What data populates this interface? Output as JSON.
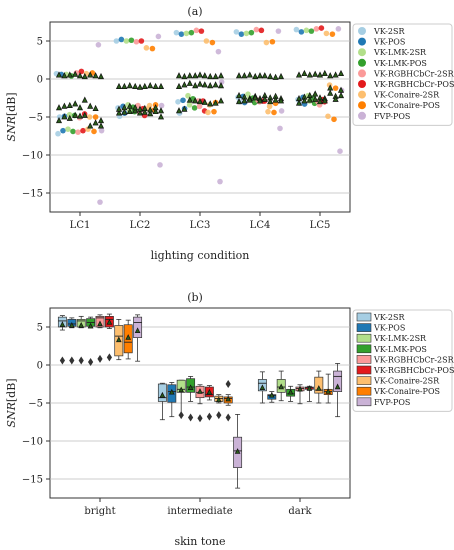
{
  "chart_data": [
    {
      "type": "scatter",
      "panel_title": "(a)",
      "xlabel": "lighting condition",
      "ylabel_main": "SNR",
      "ylabel_unit": "[dB]",
      "ylim": [
        -17.5,
        7.5
      ],
      "yticks": [
        -15,
        -10,
        -5,
        0,
        5
      ],
      "grid": "horizontal",
      "legend_position": "right",
      "categories": [
        "LC1",
        "LC2",
        "LC3",
        "LC4",
        "LC5"
      ],
      "series": [
        {
          "name": "VK-2SR",
          "color": "#a6cee3",
          "values": [
            [
              0.7,
              -7.2,
              -5.0
            ],
            [
              5.0,
              -3.8,
              -4.9
            ],
            [
              6.1,
              -3.0,
              -4.5
            ],
            [
              6.2,
              -2.4,
              -3.0
            ],
            [
              6.5,
              -2.7,
              -3.2
            ]
          ]
        },
        {
          "name": "VK-POS",
          "color": "#1f78b4",
          "values": [
            [
              0.6,
              -6.8,
              -4.9
            ],
            [
              5.2,
              -3.6,
              -4.5
            ],
            [
              5.9,
              -2.8,
              -3.9
            ],
            [
              5.9,
              -2.3,
              -3.1
            ],
            [
              6.2,
              -2.4,
              -3.3
            ]
          ]
        },
        {
          "name": "VK-LMK-2SR",
          "color": "#b2df8a",
          "values": [
            [
              0.6,
              -6.6,
              -4.7
            ],
            [
              5.0,
              -3.4,
              -4.2
            ],
            [
              6.0,
              -2.2,
              -3.4
            ],
            [
              6.0,
              -2.0,
              -2.6
            ],
            [
              6.4,
              -2.2,
              -2.9
            ]
          ]
        },
        {
          "name": "VK-LMK-POS",
          "color": "#33a02c",
          "values": [
            [
              0.4,
              -6.9,
              -4.8
            ],
            [
              5.1,
              -3.7,
              -4.3
            ],
            [
              6.1,
              -2.6,
              -3.8
            ],
            [
              6.1,
              -2.5,
              -3.1
            ],
            [
              6.3,
              -2.5,
              -3.2
            ]
          ]
        },
        {
          "name": "VK-RGBHCbCr-2SR",
          "color": "#fb9a99",
          "values": [
            [
              0.8,
              -7.0,
              -5.1
            ],
            [
              4.9,
              -3.5,
              -4.4
            ],
            [
              6.4,
              -2.9,
              -3.6
            ],
            [
              6.5,
              -2.8,
              -3.0
            ],
            [
              6.6,
              -3.0,
              -3.4
            ]
          ]
        },
        {
          "name": "VK-RGBHCbCr-POS",
          "color": "#e31a1c",
          "values": [
            [
              1.0,
              -6.8,
              -4.6
            ],
            [
              5.0,
              -3.9,
              -4.8
            ],
            [
              6.3,
              -2.9,
              -4.2
            ],
            [
              6.4,
              -2.9,
              -2.9
            ],
            [
              6.7,
              -2.7,
              -3.0
            ]
          ]
        },
        {
          "name": "VK-Conaire-2SR",
          "color": "#fdbf6f",
          "values": [
            [
              0.7,
              -6.6,
              -5.0
            ],
            [
              4.1,
              -3.9,
              -3.5
            ],
            [
              5.0,
              -4.4,
              -3.4
            ],
            [
              4.8,
              -4.3,
              -3.6
            ],
            [
              6.0,
              -4.9,
              -0.8
            ]
          ]
        },
        {
          "name": "VK-Conaire-POS",
          "color": "#ff7f00",
          "values": [
            [
              0.8,
              -6.9,
              -5.0
            ],
            [
              4.0,
              -4.1,
              -3.4
            ],
            [
              4.8,
              -4.3,
              -3.1
            ],
            [
              4.9,
              -4.4,
              -3.2
            ],
            [
              5.9,
              -5.3,
              -1.2
            ]
          ]
        },
        {
          "name": "FVP-POS",
          "color": "#cab2d6",
          "values": [
            [
              4.5,
              -16.2,
              -6.8
            ],
            [
              5.6,
              -11.3,
              -3.5
            ],
            [
              3.6,
              -13.5,
              -0.4
            ],
            [
              6.3,
              -6.5,
              -4.2
            ],
            [
              6.6,
              -9.5,
              -1.5
            ]
          ]
        }
      ],
      "triangles_color": "#2a5d1a",
      "triangle_offsets": [
        -0.35,
        -0.26,
        -0.17,
        -0.08,
        0.0,
        0.08,
        0.17,
        0.26,
        0.35
      ],
      "triangle_values": [
        [
          [
            0.5,
            -3.8,
            -5.5
          ],
          [
            0.4,
            -3.6,
            -5.0
          ],
          [
            0.5,
            -3.5,
            -5.2
          ],
          [
            0.6,
            -3.3,
            -4.8
          ],
          [
            0.4,
            -3.8,
            -4.9
          ],
          [
            0.3,
            -2.8,
            -4.8
          ],
          [
            0.5,
            -3.6,
            -6.2
          ],
          [
            0.4,
            -3.9,
            -5.8
          ],
          [
            0.3,
            -6.2,
            -5.5
          ]
        ],
        [
          [
            -1.0,
            -4.5,
            -4.0
          ],
          [
            -1.0,
            -4.4,
            -3.8
          ],
          [
            -0.9,
            -4.3,
            -3.6
          ],
          [
            -1.0,
            -4.2,
            -3.8
          ],
          [
            -1.1,
            -4.5,
            -4.0
          ],
          [
            -1.0,
            -4.4,
            -3.9
          ],
          [
            -0.9,
            -4.6,
            -4.1
          ],
          [
            -1.0,
            -4.3,
            -3.8
          ],
          [
            -1.0,
            -5.0,
            -4.2
          ]
        ],
        [
          [
            0.4,
            -4.2,
            -1.0
          ],
          [
            0.3,
            -4.0,
            -0.8
          ],
          [
            0.4,
            -2.8,
            -0.6
          ],
          [
            0.4,
            -2.9,
            -0.9
          ],
          [
            0.5,
            -3.0,
            -0.7
          ],
          [
            0.4,
            -3.1,
            -0.8
          ],
          [
            0.3,
            -3.3,
            -0.9
          ],
          [
            0.3,
            -3.2,
            -0.8
          ],
          [
            0.4,
            -2.9,
            -0.9
          ]
        ],
        [
          [
            0.4,
            -2.2,
            -3.0
          ],
          [
            0.4,
            -2.4,
            -2.9
          ],
          [
            0.5,
            -2.6,
            -2.8
          ],
          [
            0.3,
            -2.3,
            -2.5
          ],
          [
            0.4,
            -2.6,
            -2.9
          ],
          [
            0.4,
            -2.2,
            -2.7
          ],
          [
            0.3,
            -2.5,
            -3.0
          ],
          [
            0.2,
            -2.3,
            -2.8
          ],
          [
            0.3,
            -2.6,
            -2.9
          ]
        ],
        [
          [
            0.5,
            -2.6,
            -3.2
          ],
          [
            0.7,
            -2.4,
            -2.9
          ],
          [
            0.5,
            -2.2,
            -2.8
          ],
          [
            0.6,
            -2.0,
            -2.7
          ],
          [
            0.5,
            -2.5,
            -3.0
          ],
          [
            0.7,
            -2.6,
            -2.9
          ],
          [
            0.4,
            -1.9,
            -1.2
          ],
          [
            0.5,
            -2.3,
            -2.7
          ],
          [
            0.7,
            -2.2,
            -1.5
          ]
        ]
      ]
    },
    {
      "type": "box",
      "panel_title": "(b)",
      "xlabel": "skin tone",
      "ylabel_main": "SNR",
      "ylabel_unit": "[dB]",
      "ylim": [
        -17.5,
        7.5
      ],
      "yticks": [
        -15,
        -10,
        -5,
        0,
        5
      ],
      "grid": "horizontal",
      "legend_position": "right",
      "categories": [
        "bright",
        "intermediate",
        "dark"
      ],
      "series_names": [
        "VK-2SR",
        "VK-POS",
        "VK-LMK-2SR",
        "VK-LMK-POS",
        "VK-RGBHCbCr-2SR",
        "VK-RGBHCbCr-POS",
        "VK-Conaire-2SR",
        "VK-Conaire-POS",
        "FVP-POS"
      ],
      "series_colors": [
        "#a6cee3",
        "#1f78b4",
        "#b2df8a",
        "#33a02c",
        "#fb9a99",
        "#e31a1c",
        "#fdbf6f",
        "#ff7f00",
        "#cab2d6"
      ],
      "boxes": [
        [
          {
            "min": 4.6,
            "q1": 5.0,
            "median": 5.8,
            "q3": 6.3,
            "max": 6.5,
            "mean": 5.3,
            "outliers": [
              0.6
            ]
          },
          {
            "min": 4.9,
            "q1": 5.1,
            "median": 5.4,
            "q3": 6.0,
            "max": 6.2,
            "mean": 5.2,
            "outliers": [
              0.6
            ]
          },
          {
            "min": 4.9,
            "q1": 5.0,
            "median": 5.8,
            "q3": 6.0,
            "max": 6.4,
            "mean": 5.2,
            "outliers": [
              0.6
            ]
          },
          {
            "min": 4.9,
            "q1": 5.1,
            "median": 5.6,
            "q3": 6.1,
            "max": 6.3,
            "mean": 5.1,
            "outliers": [
              0.4
            ]
          },
          {
            "min": 4.9,
            "q1": 5.0,
            "median": 6.2,
            "q3": 6.4,
            "max": 6.6,
            "mean": 5.4,
            "outliers": [
              0.8
            ]
          },
          {
            "min": 4.8,
            "q1": 5.0,
            "median": 6.0,
            "q3": 6.4,
            "max": 6.7,
            "mean": 5.6,
            "outliers": [
              1.0
            ]
          },
          {
            "min": 0.7,
            "q1": 1.2,
            "median": 3.8,
            "q3": 5.2,
            "max": 6.0,
            "mean": 3.3,
            "outliers": []
          },
          {
            "min": 0.8,
            "q1": 1.6,
            "median": 3.0,
            "q3": 5.3,
            "max": 5.9,
            "mean": 3.6,
            "outliers": []
          },
          {
            "min": 0.5,
            "q1": 3.6,
            "median": 5.6,
            "q3": 6.3,
            "max": 6.6,
            "mean": 4.5,
            "outliers": []
          }
        ],
        [
          {
            "min": -7.2,
            "q1": -4.8,
            "median": -4.3,
            "q3": -2.5,
            "max": -2.4,
            "mean": -4.0,
            "outliers": []
          },
          {
            "min": -6.8,
            "q1": -4.9,
            "median": -3.5,
            "q3": -2.6,
            "max": -2.3,
            "mean": -3.6,
            "outliers": []
          },
          {
            "min": -6.6,
            "q1": -3.6,
            "median": -3.2,
            "q3": -2.0,
            "max": -2.0,
            "mean": -3.3,
            "outliers": [
              -6.6
            ]
          },
          {
            "min": -4.8,
            "q1": -3.6,
            "median": -2.9,
            "q3": -1.8,
            "max": -1.5,
            "mean": -3.0,
            "outliers": [
              -6.9
            ]
          },
          {
            "min": -5.1,
            "q1": -4.3,
            "median": -3.6,
            "q3": -2.8,
            "max": -2.6,
            "mean": -3.5,
            "outliers": [
              -7.0
            ]
          },
          {
            "min": -4.6,
            "q1": -4.2,
            "median": -3.9,
            "q3": -2.9,
            "max": -2.7,
            "mean": -3.6,
            "outliers": [
              -6.8
            ]
          },
          {
            "min": -5.0,
            "q1": -4.8,
            "median": -4.4,
            "q3": -4.1,
            "max": -3.9,
            "mean": -4.6,
            "outliers": [
              -6.6
            ]
          },
          {
            "min": -5.3,
            "q1": -5.0,
            "median": -4.4,
            "q3": -4.2,
            "max": -3.9,
            "mean": -4.5,
            "outliers": [
              -6.9,
              -2.5
            ]
          },
          {
            "min": -16.2,
            "q1": -13.5,
            "median": -11.3,
            "q3": -9.5,
            "max": -6.5,
            "mean": -11.4,
            "outliers": []
          }
        ],
        [
          {
            "min": -5.0,
            "q1": -3.4,
            "median": -2.4,
            "q3": -1.9,
            "max": -0.9,
            "mean": -3.0,
            "outliers": []
          },
          {
            "min": -4.9,
            "q1": -4.5,
            "median": -4.0,
            "q3": -3.9,
            "max": -3.5,
            "mean": -4.0,
            "outliers": []
          },
          {
            "min": -4.7,
            "q1": -3.6,
            "median": -2.9,
            "q3": -1.9,
            "max": -0.8,
            "mean": -2.9,
            "outliers": []
          },
          {
            "min": -4.8,
            "q1": -4.1,
            "median": -3.8,
            "q3": -3.2,
            "max": -2.8,
            "mean": -3.6,
            "outliers": []
          },
          {
            "min": -5.1,
            "q1": -3.4,
            "median": -3.1,
            "q3": -2.9,
            "max": -2.6,
            "mean": -3.2,
            "outliers": []
          },
          {
            "min": -4.8,
            "q1": -3.2,
            "median": -3.0,
            "q3": -2.9,
            "max": -2.8,
            "mean": -3.1,
            "outliers": []
          },
          {
            "min": -5.0,
            "q1": -3.7,
            "median": -3.3,
            "q3": -1.6,
            "max": -0.8,
            "mean": -3.1,
            "outliers": []
          },
          {
            "min": -5.0,
            "q1": -3.9,
            "median": -3.5,
            "q3": -3.2,
            "max": -1.2,
            "mean": -3.5,
            "outliers": []
          },
          {
            "min": -6.8,
            "q1": -3.5,
            "median": -1.5,
            "q3": -0.8,
            "max": 0.2,
            "mean": -2.9,
            "outliers": []
          }
        ]
      ]
    }
  ]
}
